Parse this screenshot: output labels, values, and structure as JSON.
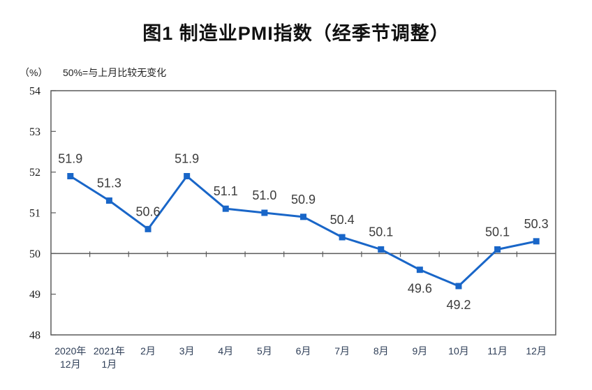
{
  "page": {
    "title": "图1 制造业PMI指数（经季节调整）"
  },
  "subtitle": {
    "unit": "（%）",
    "note": "50%=与上月比较无变化"
  },
  "chart_data": {
    "type": "line",
    "title": "图1 制造业PMI指数（经季节调整）",
    "unit_label": "（%）",
    "annotation": "50%=与上月比较无变化",
    "categories": [
      [
        "2020年",
        "12月"
      ],
      [
        "2021年",
        "1月"
      ],
      [
        "2月"
      ],
      [
        "3月"
      ],
      [
        "4月"
      ],
      [
        "5月"
      ],
      [
        "6月"
      ],
      [
        "7月"
      ],
      [
        "8月"
      ],
      [
        "9月"
      ],
      [
        "10月"
      ],
      [
        "11月"
      ],
      [
        "12月"
      ]
    ],
    "series": [
      {
        "name": "制造业PMI",
        "values": [
          51.9,
          51.3,
          50.6,
          51.9,
          51.1,
          51.0,
          50.9,
          50.4,
          50.1,
          49.6,
          49.2,
          50.1,
          50.3
        ]
      }
    ],
    "label_positions": [
      "above",
      "above",
      "above",
      "above",
      "above",
      "above",
      "above",
      "above",
      "above",
      "below",
      "below",
      "above",
      "above"
    ],
    "ylim": [
      48,
      54
    ],
    "ytick_step": 1,
    "reference_line": 50,
    "grid": false,
    "legend": "none",
    "line_color": "#1966c8",
    "marker": "square",
    "axis_color": "#5a5a5a",
    "data_label_color": "#3c3c3c",
    "ytick_label_color": "#1a1a1a",
    "xtick_label_color": "#2e3e57"
  }
}
